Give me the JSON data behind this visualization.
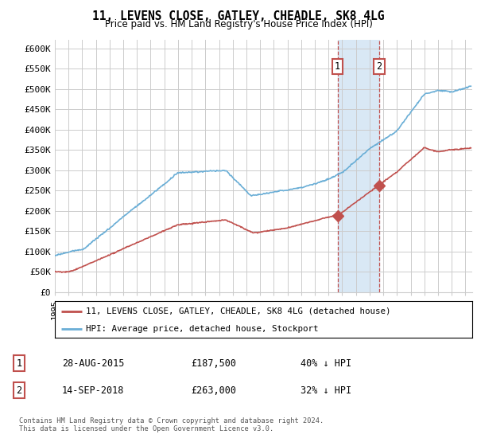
{
  "title": "11, LEVENS CLOSE, GATLEY, CHEADLE, SK8 4LG",
  "subtitle": "Price paid vs. HM Land Registry's House Price Index (HPI)",
  "ylabel_ticks": [
    "£0",
    "£50K",
    "£100K",
    "£150K",
    "£200K",
    "£250K",
    "£300K",
    "£350K",
    "£400K",
    "£450K",
    "£500K",
    "£550K",
    "£600K"
  ],
  "ytick_values": [
    0,
    50000,
    100000,
    150000,
    200000,
    250000,
    300000,
    350000,
    400000,
    450000,
    500000,
    550000,
    600000
  ],
  "ylim": [
    0,
    620000
  ],
  "xlim_start": 1995.0,
  "xlim_end": 2025.5,
  "sale1_date": 2015.66,
  "sale1_price": 187500,
  "sale2_date": 2018.71,
  "sale2_price": 263000,
  "shade_start": 2015.66,
  "shade_end": 2018.71,
  "legend_line1": "11, LEVENS CLOSE, GATLEY, CHEADLE, SK8 4LG (detached house)",
  "legend_line2": "HPI: Average price, detached house, Stockport",
  "table_row1": [
    "1",
    "28-AUG-2015",
    "£187,500",
    "40% ↓ HPI"
  ],
  "table_row2": [
    "2",
    "14-SEP-2018",
    "£263,000",
    "32% ↓ HPI"
  ],
  "footer": "Contains HM Land Registry data © Crown copyright and database right 2024.\nThis data is licensed under the Open Government Licence v3.0.",
  "hpi_color": "#6aaed6",
  "price_color": "#c0504d",
  "shade_color": "#d9e8f5",
  "grid_color": "#cccccc"
}
